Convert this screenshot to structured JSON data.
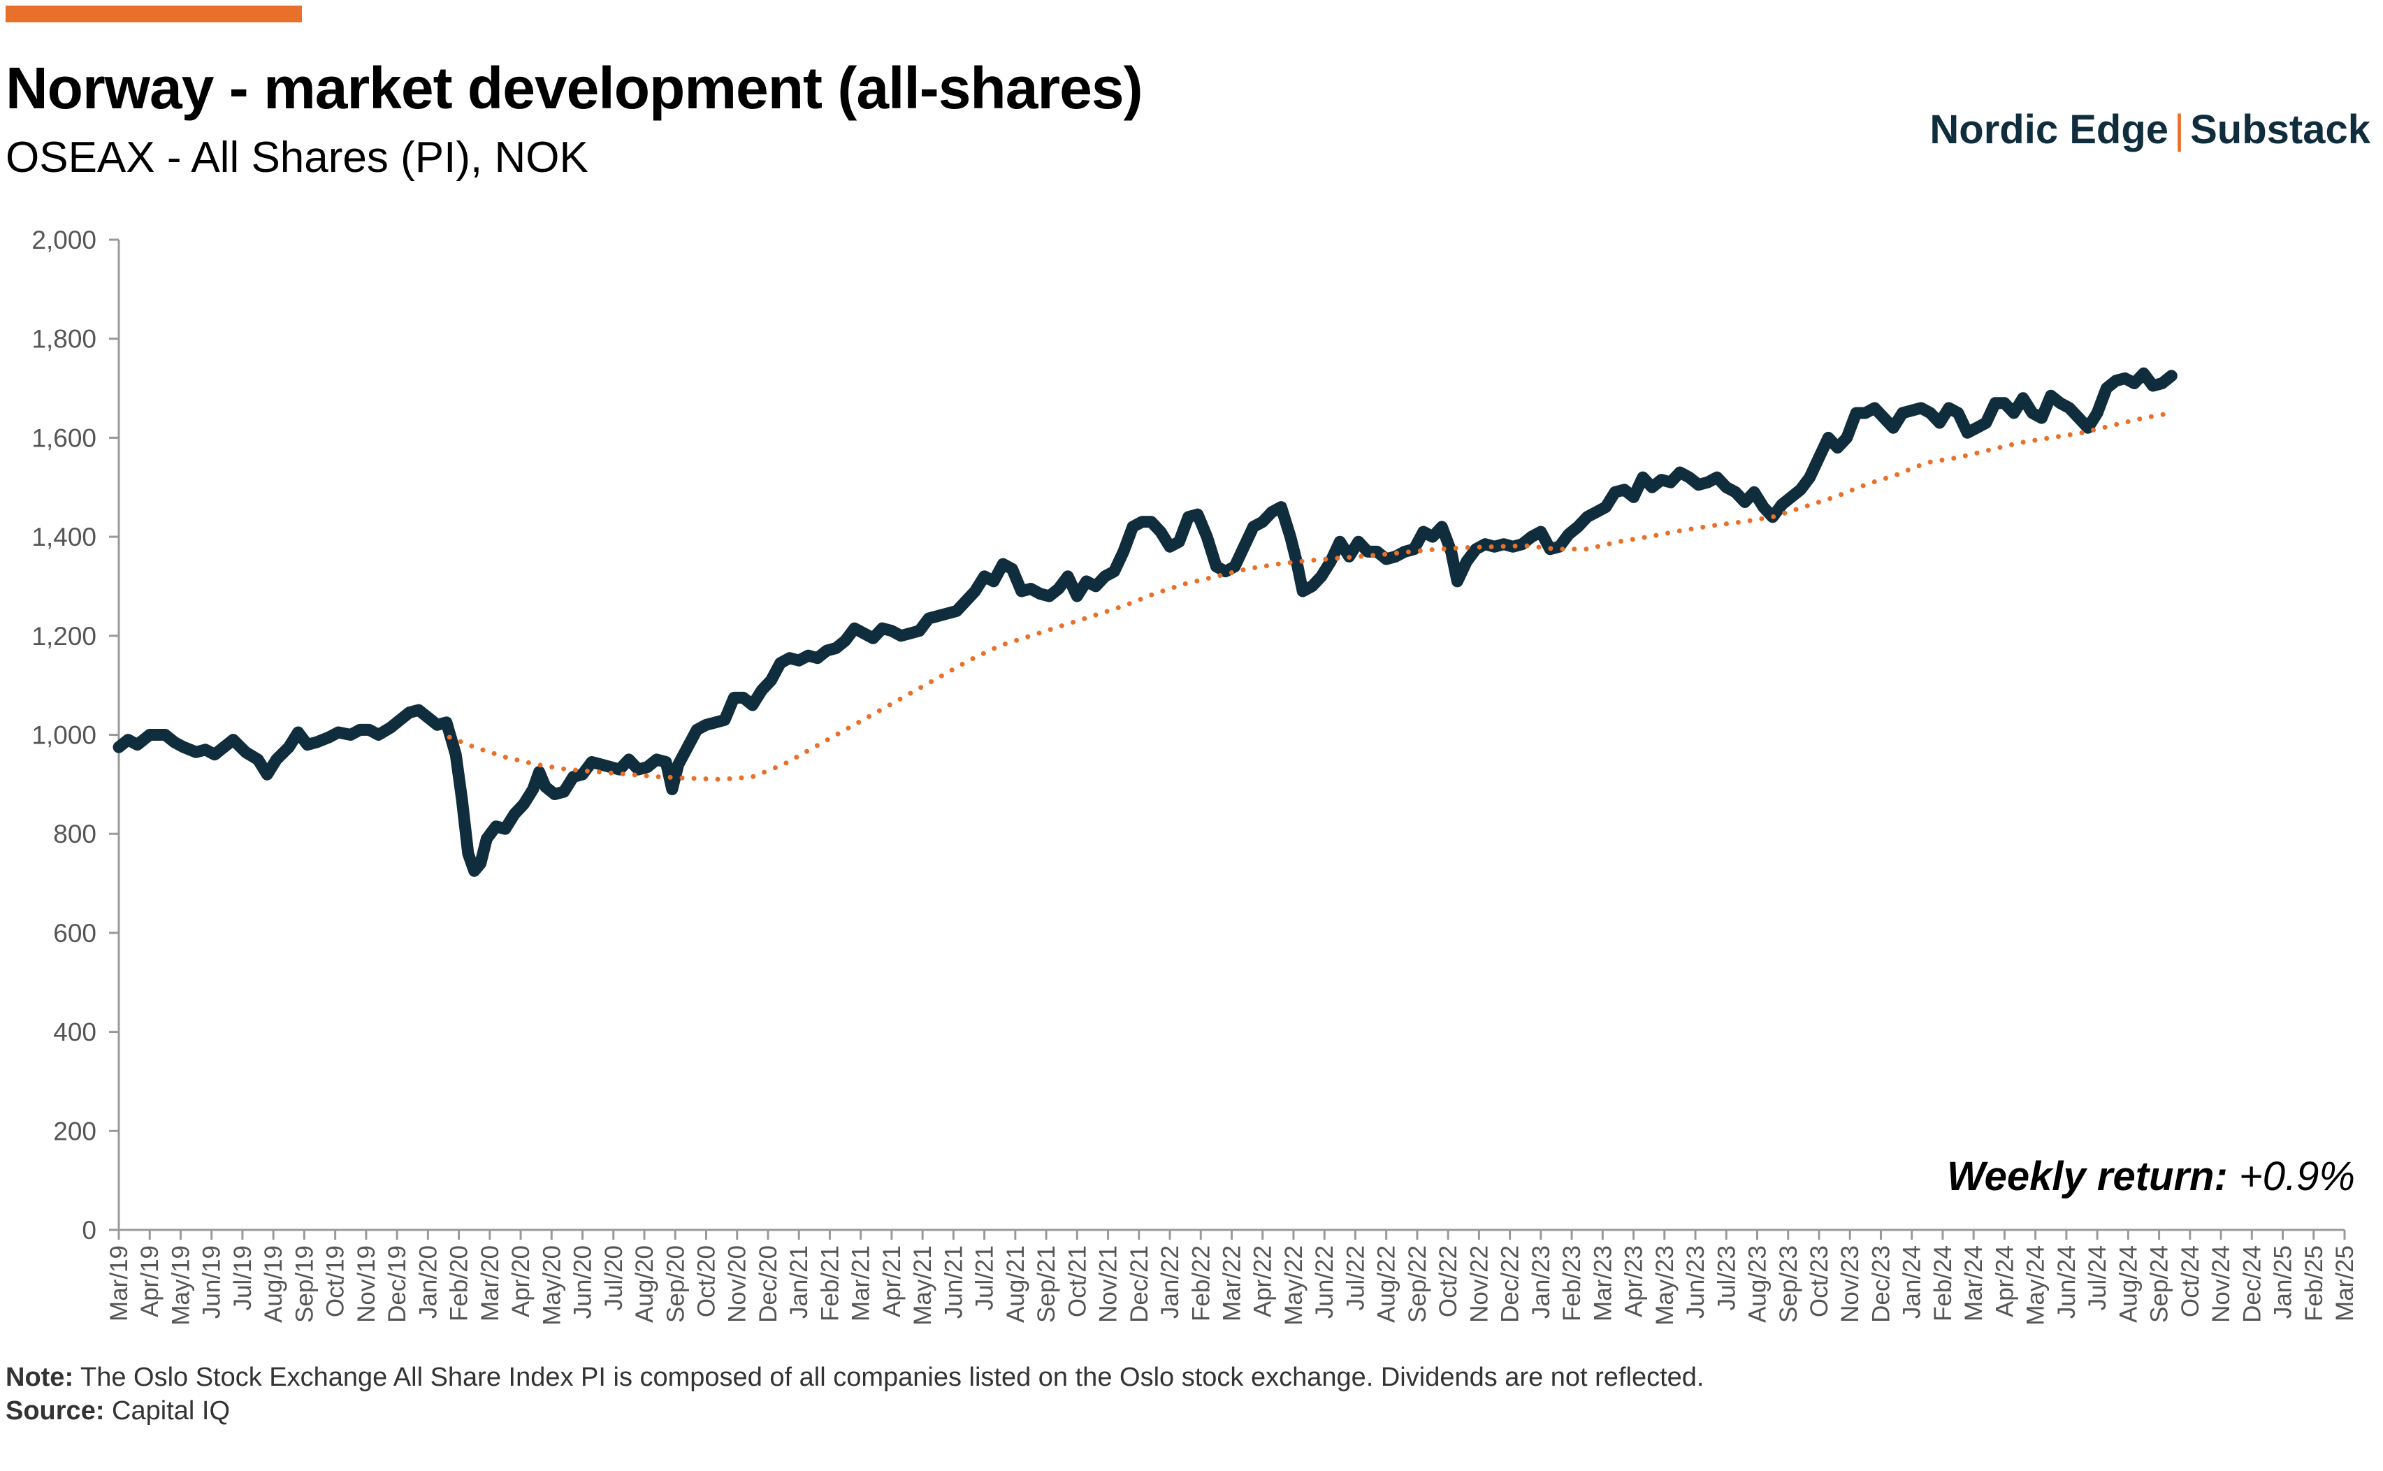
{
  "header": {
    "title": "Norway - market development (all-shares)",
    "subtitle": "OSEAX - All Shares (PI), NOK",
    "brand_left": "Nordic Edge",
    "brand_sep": "|",
    "brand_right": "Substack"
  },
  "annotation": {
    "label": "Weekly return:",
    "value": "+0.9%"
  },
  "footer": {
    "note_label": "Note:",
    "note_text": " The Oslo Stock Exchange All Share Index PI is composed of all companies listed on the Oslo stock exchange. Dividends are not reflected.",
    "source_label": "Source:",
    "source_text": " Capital IQ"
  },
  "colors": {
    "index_line": "#0F2D3C",
    "moving_average": "#E8702A",
    "accent": "#E8702A",
    "axis": "#999999"
  },
  "chart_data": {
    "type": "line",
    "title": "Norway - market development (all-shares)",
    "ylim": [
      0,
      2000
    ],
    "yticks": [
      "0",
      "200",
      "400",
      "600",
      "800",
      "1,000",
      "1,200",
      "1,400",
      "1,600",
      "1,800",
      "2,000"
    ],
    "grid": false,
    "categories": [
      "Mar/19",
      "Apr/19",
      "May/19",
      "Jun/19",
      "Jul/19",
      "Aug/19",
      "Sep/19",
      "Oct/19",
      "Nov/19",
      "Dec/19",
      "Jan/20",
      "Feb/20",
      "Mar/20",
      "Apr/20",
      "May/20",
      "Jun/20",
      "Jul/20",
      "Aug/20",
      "Sep/20",
      "Oct/20",
      "Nov/20",
      "Dec/20",
      "Jan/21",
      "Feb/21",
      "Mar/21",
      "Apr/21",
      "May/21",
      "Jun/21",
      "Jul/21",
      "Aug/21",
      "Sep/21",
      "Oct/21",
      "Nov/21",
      "Dec/21",
      "Jan/22",
      "Feb/22",
      "Mar/22",
      "Apr/22",
      "May/22",
      "Jun/22",
      "Jul/22",
      "Aug/22",
      "Sep/22",
      "Oct/22",
      "Nov/22",
      "Dec/22",
      "Jan/23",
      "Feb/23",
      "Mar/23",
      "Apr/23",
      "May/23",
      "Jun/23",
      "Jul/23",
      "Aug/23",
      "Sep/23",
      "Oct/23",
      "Nov/23",
      "Dec/23",
      "Jan/24",
      "Feb/24",
      "Mar/24",
      "Apr/24",
      "May/24",
      "Jun/24",
      "Jul/24",
      "Aug/24",
      "Sep/24",
      "Oct/24",
      "Nov/24",
      "Dec/24",
      "Jan/25",
      "Feb/25",
      "Mar/25"
    ],
    "series": [
      {
        "style": "solid",
        "points": [
          [
            0,
            975
          ],
          [
            0.3,
            990
          ],
          [
            0.6,
            980
          ],
          [
            1,
            1000
          ],
          [
            1.5,
            1000
          ],
          [
            1.8,
            985
          ],
          [
            2.1,
            975
          ],
          [
            2.5,
            965
          ],
          [
            2.8,
            970
          ],
          [
            3.1,
            960
          ],
          [
            3.4,
            975
          ],
          [
            3.7,
            990
          ],
          [
            4.1,
            965
          ],
          [
            4.5,
            950
          ],
          [
            4.8,
            920
          ],
          [
            5.1,
            950
          ],
          [
            5.5,
            975
          ],
          [
            5.8,
            1005
          ],
          [
            6.1,
            980
          ],
          [
            6.4,
            985
          ],
          [
            6.8,
            995
          ],
          [
            7.1,
            1005
          ],
          [
            7.5,
            1000
          ],
          [
            7.8,
            1010
          ],
          [
            8.1,
            1010
          ],
          [
            8.4,
            1000
          ],
          [
            8.8,
            1015
          ],
          [
            9.1,
            1030
          ],
          [
            9.4,
            1045
          ],
          [
            9.7,
            1050
          ],
          [
            10,
            1035
          ],
          [
            10.3,
            1020
          ],
          [
            10.6,
            1025
          ],
          [
            10.9,
            960
          ],
          [
            11.1,
            870
          ],
          [
            11.3,
            760
          ],
          [
            11.5,
            725
          ],
          [
            11.7,
            740
          ],
          [
            11.9,
            790
          ],
          [
            12.2,
            815
          ],
          [
            12.5,
            810
          ],
          [
            12.8,
            840
          ],
          [
            13.1,
            860
          ],
          [
            13.4,
            890
          ],
          [
            13.6,
            925
          ],
          [
            13.8,
            895
          ],
          [
            14.1,
            880
          ],
          [
            14.4,
            885
          ],
          [
            14.7,
            915
          ],
          [
            15.0,
            920
          ],
          [
            15.3,
            945
          ],
          [
            15.6,
            940
          ],
          [
            15.9,
            935
          ],
          [
            16.2,
            930
          ],
          [
            16.5,
            950
          ],
          [
            16.8,
            930
          ],
          [
            17.1,
            935
          ],
          [
            17.4,
            950
          ],
          [
            17.7,
            945
          ],
          [
            17.9,
            890
          ],
          [
            18.1,
            940
          ],
          [
            18.4,
            975
          ],
          [
            18.7,
            1010
          ],
          [
            19.0,
            1020
          ],
          [
            19.3,
            1025
          ],
          [
            19.6,
            1030
          ],
          [
            19.9,
            1075
          ],
          [
            20.2,
            1075
          ],
          [
            20.5,
            1060
          ],
          [
            20.8,
            1090
          ],
          [
            21.1,
            1110
          ],
          [
            21.4,
            1145
          ],
          [
            21.7,
            1155
          ],
          [
            22.0,
            1150
          ],
          [
            22.3,
            1160
          ],
          [
            22.6,
            1155
          ],
          [
            22.9,
            1170
          ],
          [
            23.2,
            1175
          ],
          [
            23.5,
            1190
          ],
          [
            23.8,
            1215
          ],
          [
            24.1,
            1205
          ],
          [
            24.4,
            1195
          ],
          [
            24.7,
            1215
          ],
          [
            25.0,
            1210
          ],
          [
            25.3,
            1200
          ],
          [
            25.6,
            1205
          ],
          [
            25.9,
            1210
          ],
          [
            26.2,
            1235
          ],
          [
            26.5,
            1240
          ],
          [
            26.8,
            1245
          ],
          [
            27.1,
            1250
          ],
          [
            27.4,
            1270
          ],
          [
            27.7,
            1290
          ],
          [
            28.0,
            1320
          ],
          [
            28.3,
            1310
          ],
          [
            28.6,
            1345
          ],
          [
            28.9,
            1335
          ],
          [
            29.2,
            1290
          ],
          [
            29.5,
            1295
          ],
          [
            29.8,
            1285
          ],
          [
            30.1,
            1280
          ],
          [
            30.4,
            1295
          ],
          [
            30.7,
            1320
          ],
          [
            31.0,
            1280
          ],
          [
            31.3,
            1310
          ],
          [
            31.6,
            1300
          ],
          [
            31.9,
            1320
          ],
          [
            32.2,
            1330
          ],
          [
            32.5,
            1370
          ],
          [
            32.8,
            1420
          ],
          [
            33.1,
            1430
          ],
          [
            33.4,
            1430
          ],
          [
            33.7,
            1410
          ],
          [
            34.0,
            1380
          ],
          [
            34.3,
            1390
          ],
          [
            34.6,
            1440
          ],
          [
            34.9,
            1445
          ],
          [
            35.2,
            1400
          ],
          [
            35.5,
            1340
          ],
          [
            35.8,
            1330
          ],
          [
            36.1,
            1340
          ],
          [
            36.4,
            1380
          ],
          [
            36.7,
            1420
          ],
          [
            37.0,
            1430
          ],
          [
            37.3,
            1450
          ],
          [
            37.6,
            1460
          ],
          [
            37.9,
            1400
          ],
          [
            38.1,
            1350
          ],
          [
            38.3,
            1290
          ],
          [
            38.6,
            1300
          ],
          [
            38.9,
            1320
          ],
          [
            39.2,
            1350
          ],
          [
            39.5,
            1390
          ],
          [
            39.8,
            1360
          ],
          [
            40.1,
            1390
          ],
          [
            40.4,
            1370
          ],
          [
            40.7,
            1370
          ],
          [
            41.0,
            1355
          ],
          [
            41.3,
            1360
          ],
          [
            41.6,
            1370
          ],
          [
            41.9,
            1375
          ],
          [
            42.2,
            1410
          ],
          [
            42.5,
            1400
          ],
          [
            42.8,
            1420
          ],
          [
            43.1,
            1370
          ],
          [
            43.3,
            1310
          ],
          [
            43.6,
            1350
          ],
          [
            43.9,
            1375
          ],
          [
            44.2,
            1385
          ],
          [
            44.5,
            1380
          ],
          [
            44.8,
            1385
          ],
          [
            45.1,
            1380
          ],
          [
            45.4,
            1385
          ],
          [
            45.7,
            1400
          ],
          [
            46.0,
            1410
          ],
          [
            46.3,
            1375
          ],
          [
            46.6,
            1380
          ],
          [
            46.9,
            1405
          ],
          [
            47.2,
            1420
          ],
          [
            47.5,
            1440
          ],
          [
            47.8,
            1450
          ],
          [
            48.1,
            1460
          ],
          [
            48.4,
            1490
          ],
          [
            48.7,
            1495
          ],
          [
            49.0,
            1480
          ],
          [
            49.3,
            1520
          ],
          [
            49.6,
            1500
          ],
          [
            49.9,
            1515
          ],
          [
            50.2,
            1510
          ],
          [
            50.5,
            1530
          ],
          [
            50.8,
            1520
          ],
          [
            51.1,
            1505
          ],
          [
            51.4,
            1510
          ],
          [
            51.7,
            1520
          ],
          [
            52.0,
            1500
          ],
          [
            52.3,
            1490
          ],
          [
            52.6,
            1470
          ],
          [
            52.9,
            1490
          ],
          [
            53.2,
            1460
          ],
          [
            53.5,
            1440
          ],
          [
            53.8,
            1465
          ],
          [
            54.1,
            1480
          ],
          [
            54.4,
            1495
          ],
          [
            54.7,
            1520
          ],
          [
            55.0,
            1560
          ],
          [
            55.3,
            1600
          ],
          [
            55.6,
            1580
          ],
          [
            55.9,
            1600
          ],
          [
            56.2,
            1650
          ],
          [
            56.5,
            1650
          ],
          [
            56.8,
            1660
          ],
          [
            57.1,
            1640
          ],
          [
            57.4,
            1620
          ],
          [
            57.7,
            1650
          ],
          [
            58.0,
            1655
          ],
          [
            58.3,
            1660
          ],
          [
            58.6,
            1650
          ],
          [
            58.9,
            1630
          ],
          [
            59.2,
            1660
          ],
          [
            59.5,
            1650
          ],
          [
            59.8,
            1610
          ],
          [
            60.1,
            1620
          ],
          [
            60.4,
            1630
          ],
          [
            60.7,
            1670
          ],
          [
            61.0,
            1670
          ],
          [
            61.3,
            1650
          ],
          [
            61.6,
            1680
          ],
          [
            61.9,
            1650
          ],
          [
            62.2,
            1640
          ],
          [
            62.5,
            1685
          ],
          [
            62.8,
            1670
          ],
          [
            63.1,
            1660
          ],
          [
            63.4,
            1640
          ],
          [
            63.7,
            1620
          ],
          [
            64.0,
            1650
          ],
          [
            64.3,
            1700
          ],
          [
            64.6,
            1715
          ],
          [
            64.9,
            1720
          ],
          [
            65.2,
            1710
          ],
          [
            65.5,
            1730
          ],
          [
            65.8,
            1705
          ],
          [
            66.1,
            1710
          ],
          [
            66.4,
            1725
          ]
        ]
      },
      {
        "style": "dotted",
        "points": [
          [
            10.7,
            995
          ],
          [
            11.5,
            975
          ],
          [
            12.5,
            955
          ],
          [
            13.5,
            940
          ],
          [
            14.5,
            930
          ],
          [
            15.5,
            925
          ],
          [
            16.5,
            920
          ],
          [
            17.5,
            915
          ],
          [
            18.5,
            912
          ],
          [
            19.5,
            910
          ],
          [
            20.5,
            915
          ],
          [
            21.5,
            940
          ],
          [
            22.5,
            975
          ],
          [
            23.5,
            1010
          ],
          [
            24.5,
            1045
          ],
          [
            25.5,
            1080
          ],
          [
            26.5,
            1115
          ],
          [
            27.5,
            1150
          ],
          [
            28.5,
            1180
          ],
          [
            29.5,
            1200
          ],
          [
            30.5,
            1220
          ],
          [
            31.5,
            1240
          ],
          [
            32.5,
            1260
          ],
          [
            33.5,
            1285
          ],
          [
            34.5,
            1305
          ],
          [
            35.5,
            1320
          ],
          [
            36.5,
            1335
          ],
          [
            37.5,
            1345
          ],
          [
            38.5,
            1352
          ],
          [
            39.5,
            1357
          ],
          [
            40.5,
            1362
          ],
          [
            41.5,
            1368
          ],
          [
            42.5,
            1374
          ],
          [
            43.5,
            1378
          ],
          [
            44.5,
            1380
          ],
          [
            45.5,
            1382
          ],
          [
            46.5,
            1375
          ],
          [
            47.5,
            1375
          ],
          [
            48.5,
            1390
          ],
          [
            49.5,
            1400
          ],
          [
            50.5,
            1412
          ],
          [
            51.5,
            1422
          ],
          [
            52.5,
            1430
          ],
          [
            53.5,
            1440
          ],
          [
            54.5,
            1460
          ],
          [
            55.5,
            1480
          ],
          [
            56.5,
            1505
          ],
          [
            57.5,
            1525
          ],
          [
            58.5,
            1550
          ],
          [
            59.5,
            1560
          ],
          [
            60.5,
            1575
          ],
          [
            61.5,
            1590
          ],
          [
            62.5,
            1600
          ],
          [
            63.5,
            1610
          ],
          [
            64.5,
            1625
          ],
          [
            65.5,
            1640
          ],
          [
            66.4,
            1650
          ]
        ]
      }
    ]
  }
}
